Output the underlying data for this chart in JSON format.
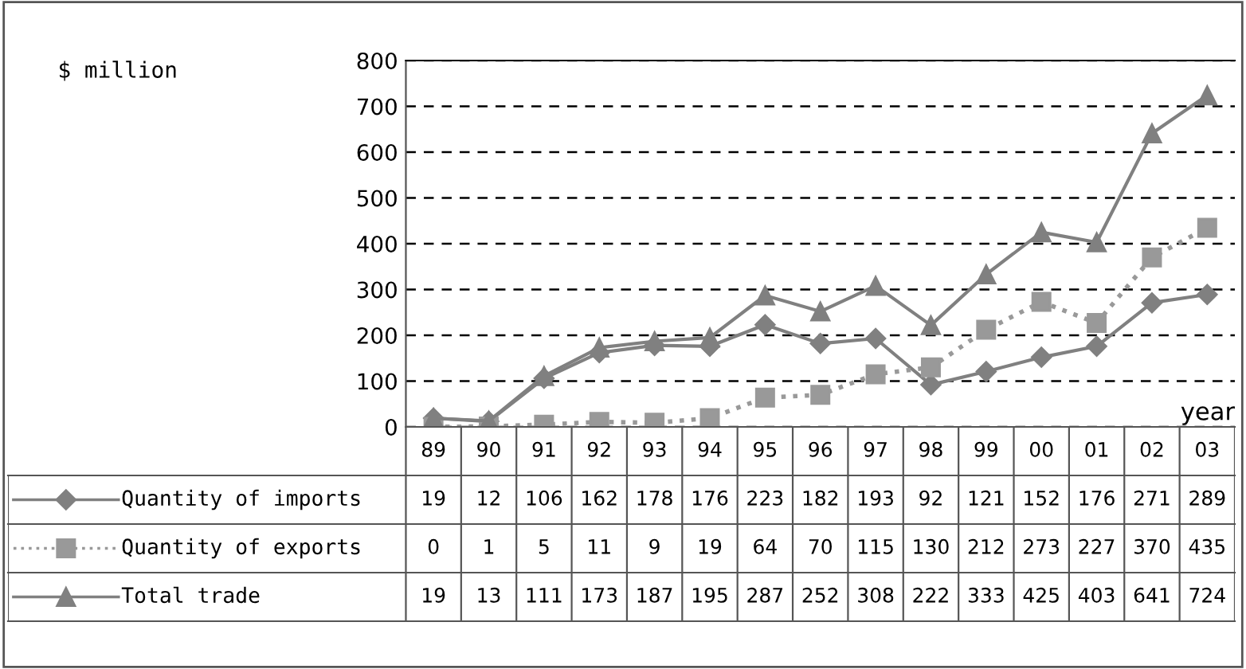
{
  "chart_data": {
    "type": "line",
    "annotations": [
      "$ million"
    ],
    "xlabel": "year",
    "legend": "bottom left",
    "categories": [
      "89",
      "90",
      "91",
      "92",
      "93",
      "94",
      "95",
      "96",
      "97",
      "98",
      "99",
      "00",
      "01",
      "02",
      "03"
    ],
    "series": [
      {
        "name": "Quantity of imports",
        "color": "#808080",
        "marker": "diamond",
        "line_style": "solid",
        "values": [
          19,
          12,
          106,
          162,
          178,
          176,
          223,
          182,
          193,
          92,
          121,
          152,
          176,
          271,
          289
        ]
      },
      {
        "name": "Quantity of exports",
        "color": "#999999",
        "marker": "square",
        "line_style": "dotted",
        "values": [
          0,
          1,
          5,
          11,
          9,
          19,
          64,
          70,
          115,
          130,
          212,
          273,
          227,
          370,
          435
        ]
      },
      {
        "name": "Total trade",
        "color": "#808080",
        "marker": "triangle",
        "line_style": "solid",
        "values": [
          19,
          13,
          111,
          173,
          187,
          195,
          287,
          252,
          308,
          222,
          333,
          425,
          403,
          641,
          724
        ]
      }
    ],
    "ylim": [
      0,
      800
    ],
    "yticks": [
      0,
      100,
      200,
      300,
      400,
      500,
      600,
      700,
      800
    ],
    "grid": "y",
    "data_labels": true
  }
}
